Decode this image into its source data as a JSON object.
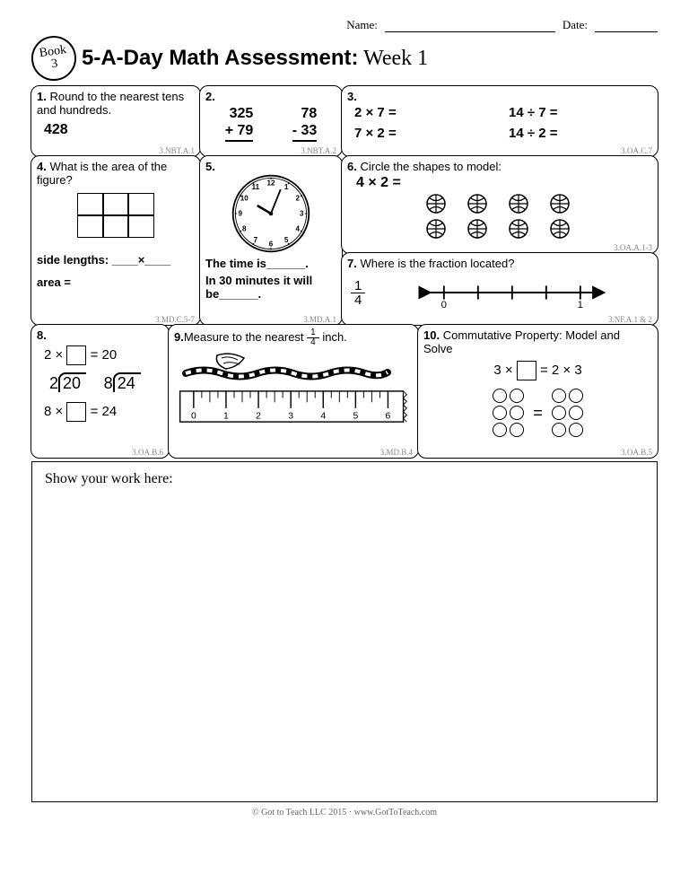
{
  "header": {
    "name_label": "Name:",
    "date_label": "Date:"
  },
  "badge": {
    "line1": "Book",
    "line2": "3"
  },
  "title": {
    "main": "5-A-Day Math Assessment:",
    "week": " Week 1"
  },
  "q1": {
    "num": "1.",
    "text": "Round to the nearest tens and hundreds.",
    "value": "428",
    "std": "3.NBT.A.1"
  },
  "q2": {
    "num": "2.",
    "a_top": "325",
    "a_op": "+",
    "a_bot": "79",
    "b_top": "78",
    "b_op": "-",
    "b_bot": "33",
    "std": "3.NBT.A.2"
  },
  "q3": {
    "num": "3.",
    "e1": "2 × 7 =",
    "e2": "14 ÷ 7 =",
    "e3": "7 × 2 =",
    "e4": "14 ÷ 2 =",
    "std": "3.OA.C.7"
  },
  "q4": {
    "num": "4.",
    "text": "What is the area of the figure?",
    "side_label": "side lengths: ____×____",
    "area_label": "area =",
    "std": "3.MD.C.5-7"
  },
  "q5": {
    "num": "5.",
    "line1": "The time is______.",
    "line2": "In 30 minutes it will be______.",
    "std": "3.MD.A.1",
    "clock": {
      "hour": 10,
      "minute": 10
    }
  },
  "q6": {
    "num": "6.",
    "text": "Circle the shapes to model:",
    "expr": "4 × 2 =",
    "ball_count": 8,
    "std": "3.OA.A.1-3"
  },
  "q7": {
    "num": "7.",
    "text": "Where is the fraction located?",
    "frac_n": "1",
    "frac_d": "4",
    "line_start": "0",
    "line_end": "1",
    "std": "3.NF.A.1 & 2"
  },
  "q8": {
    "num": "8.",
    "e1_pre": "2 ×",
    "e1_post": "= 20",
    "d1_divisor": "2",
    "d1_dividend": "20",
    "d2_divisor": "8",
    "d2_dividend": "24",
    "e2_pre": "8 ×",
    "e2_post": "= 24",
    "std": "3.OA.B.6"
  },
  "q9": {
    "num": "9.",
    "text_pre": "Measure to the nearest ",
    "text_post": " inch.",
    "frac_n": "1",
    "frac_d": "4",
    "ruler_ticks": [
      "0",
      "1",
      "2",
      "3",
      "4",
      "5",
      "6"
    ],
    "std": "3.MD.B.4"
  },
  "q10": {
    "num": "10.",
    "text": "Commutative Property: Model and Solve",
    "expr_pre": "3 ×",
    "expr_post": "= 2 × 3",
    "std": "3.OA.B.5"
  },
  "work": {
    "label": "Show your work here:"
  },
  "footer": "© Got to Teach LLC 2015 · www.GotToTeach.com"
}
